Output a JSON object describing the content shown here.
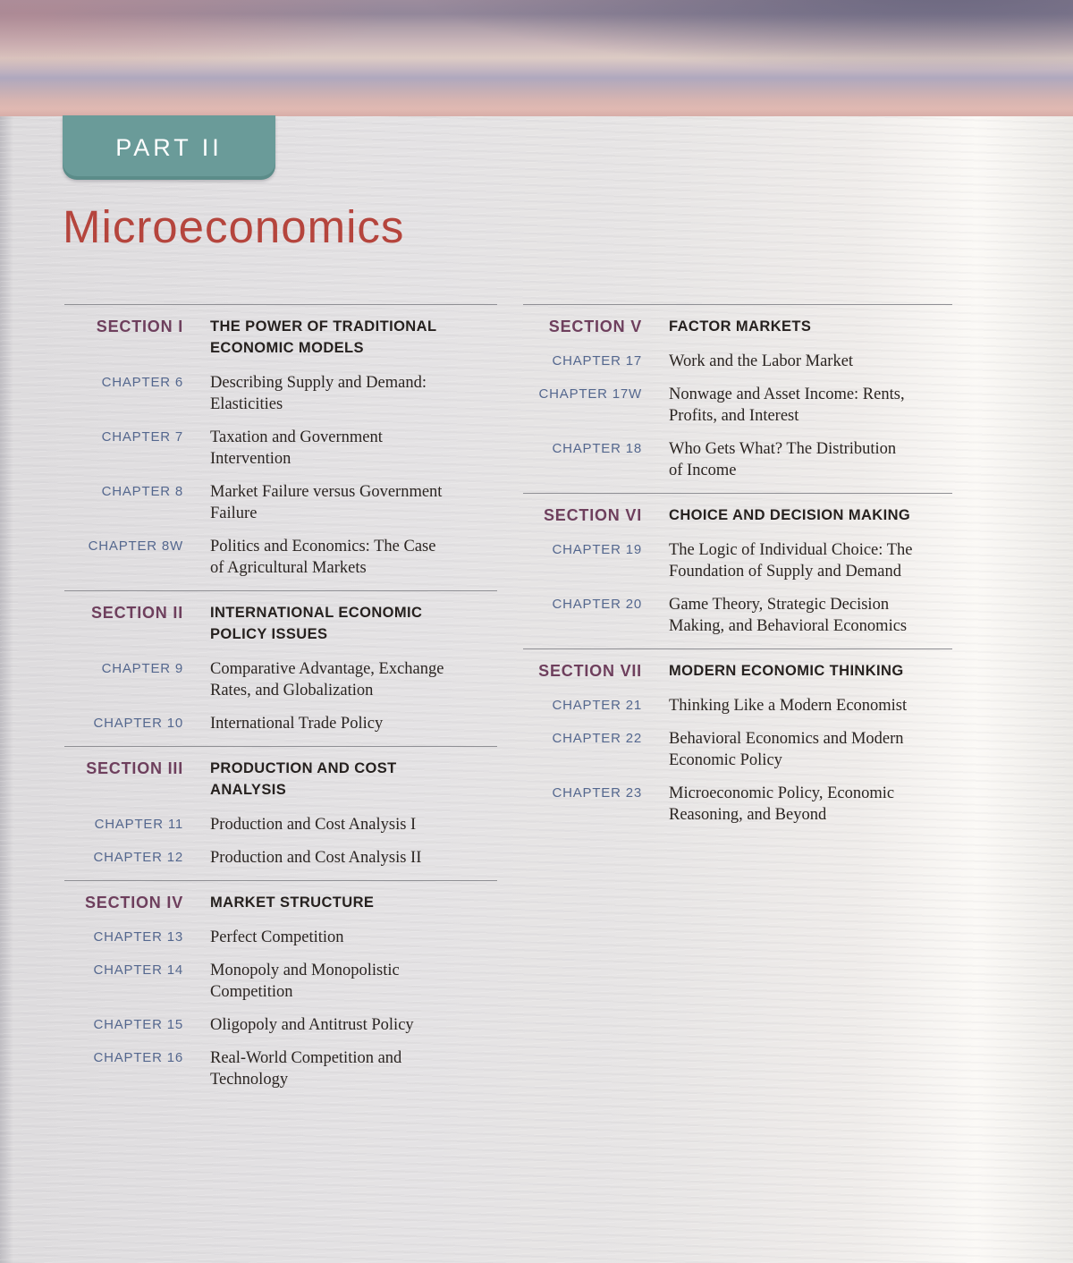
{
  "header": {
    "part_label": "PART II",
    "title": "Microeconomics"
  },
  "colors": {
    "tab_teal": "#6a9b99",
    "title_red": "#b5453d",
    "section_label_plum": "#6e3f5d",
    "chapter_label_blue": "#54678e",
    "section_title_dark": "#26211f",
    "divider_gray": "#8f8f94"
  },
  "columns": [
    {
      "sections": [
        {
          "label": "SECTION I",
          "title": "THE POWER OF TRADITIONAL\nECONOMIC MODELS",
          "chapters": [
            {
              "label": "CHAPTER 6",
              "title": "Describing Supply and Demand:\nElasticities"
            },
            {
              "label": "CHAPTER 7",
              "title": "Taxation and Government\nIntervention"
            },
            {
              "label": "CHAPTER 8",
              "title": "Market Failure versus Government\nFailure"
            },
            {
              "label": "CHAPTER 8W",
              "title": "Politics and Economics: The Case\nof Agricultural Markets"
            }
          ]
        },
        {
          "label": "SECTION II",
          "title": "INTERNATIONAL ECONOMIC\nPOLICY ISSUES",
          "chapters": [
            {
              "label": "CHAPTER 9",
              "title": "Comparative Advantage, Exchange\nRates, and Globalization"
            },
            {
              "label": "CHAPTER 10",
              "title": "International Trade Policy"
            }
          ]
        },
        {
          "label": "SECTION III",
          "title": "PRODUCTION AND COST\nANALYSIS",
          "chapters": [
            {
              "label": "CHAPTER 11",
              "title": "Production and Cost Analysis I"
            },
            {
              "label": "CHAPTER 12",
              "title": "Production and Cost Analysis II"
            }
          ]
        },
        {
          "label": "SECTION IV",
          "title": "MARKET STRUCTURE",
          "chapters": [
            {
              "label": "CHAPTER 13",
              "title": "Perfect Competition"
            },
            {
              "label": "CHAPTER 14",
              "title": "Monopoly and Monopolistic\nCompetition"
            },
            {
              "label": "CHAPTER 15",
              "title": "Oligopoly and Antitrust Policy"
            },
            {
              "label": "CHAPTER 16",
              "title": "Real-World Competition and\nTechnology"
            }
          ]
        }
      ]
    },
    {
      "sections": [
        {
          "label": "SECTION V",
          "title": "FACTOR MARKETS",
          "chapters": [
            {
              "label": "CHAPTER 17",
              "title": "Work and the Labor Market"
            },
            {
              "label": "CHAPTER 17W",
              "title": "Nonwage and Asset Income: Rents,\nProfits, and Interest"
            },
            {
              "label": "CHAPTER 18",
              "title": "Who Gets What? The Distribution\nof Income"
            }
          ]
        },
        {
          "label": "SECTION VI",
          "title": "CHOICE AND DECISION MAKING",
          "chapters": [
            {
              "label": "CHAPTER 19",
              "title": "The Logic of Individual Choice: The\nFoundation of Supply and Demand"
            },
            {
              "label": "CHAPTER 20",
              "title": "Game Theory, Strategic Decision\nMaking, and Behavioral Economics"
            }
          ]
        },
        {
          "label": "SECTION VII",
          "title": "MODERN ECONOMIC THINKING",
          "chapters": [
            {
              "label": "CHAPTER 21",
              "title": "Thinking Like a Modern Economist"
            },
            {
              "label": "CHAPTER 22",
              "title": "Behavioral Economics and Modern\nEconomic Policy"
            },
            {
              "label": "CHAPTER 23",
              "title": "Microeconomic Policy, Economic\nReasoning, and Beyond"
            }
          ]
        }
      ]
    }
  ]
}
